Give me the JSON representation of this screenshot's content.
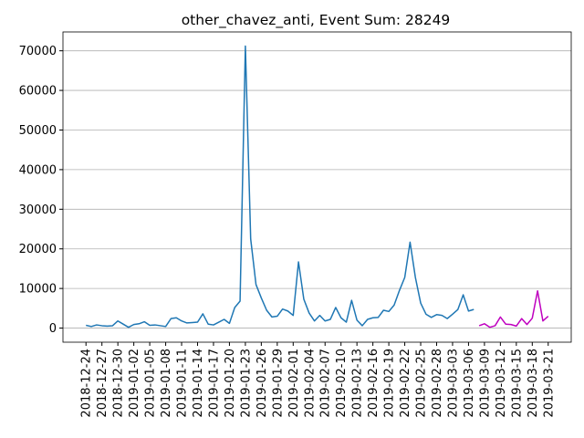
{
  "chart_data": {
    "type": "line",
    "title": "other_chavez_anti, Event Sum: 28249",
    "x": [
      "2018-12-24",
      "2018-12-25",
      "2018-12-26",
      "2018-12-27",
      "2018-12-28",
      "2018-12-29",
      "2018-12-30",
      "2018-12-31",
      "2019-01-01",
      "2019-01-02",
      "2019-01-03",
      "2019-01-04",
      "2019-01-05",
      "2019-01-06",
      "2019-01-07",
      "2019-01-08",
      "2019-01-09",
      "2019-01-10",
      "2019-01-11",
      "2019-01-12",
      "2019-01-13",
      "2019-01-14",
      "2019-01-15",
      "2019-01-16",
      "2019-01-17",
      "2019-01-18",
      "2019-01-19",
      "2019-01-20",
      "2019-01-21",
      "2019-01-22",
      "2019-01-23",
      "2019-01-24",
      "2019-01-25",
      "2019-01-26",
      "2019-01-27",
      "2019-01-28",
      "2019-01-29",
      "2019-01-30",
      "2019-01-31",
      "2019-02-01",
      "2019-02-02",
      "2019-02-03",
      "2019-02-04",
      "2019-02-05",
      "2019-02-06",
      "2019-02-07",
      "2019-02-08",
      "2019-02-09",
      "2019-02-10",
      "2019-02-11",
      "2019-02-12",
      "2019-02-13",
      "2019-02-14",
      "2019-02-15",
      "2019-02-16",
      "2019-02-17",
      "2019-02-18",
      "2019-02-19",
      "2019-02-20",
      "2019-02-21",
      "2019-02-22",
      "2019-02-23",
      "2019-02-24",
      "2019-02-25",
      "2019-02-26",
      "2019-02-27",
      "2019-02-28",
      "2019-03-01",
      "2019-03-02",
      "2019-03-03",
      "2019-03-04",
      "2019-03-05",
      "2019-03-06",
      "2019-03-07",
      "2019-03-08",
      "2019-03-09",
      "2019-03-10",
      "2019-03-11",
      "2019-03-12",
      "2019-03-13",
      "2019-03-14",
      "2019-03-15",
      "2019-03-16",
      "2019-03-17",
      "2019-03-18",
      "2019-03-19",
      "2019-03-20",
      "2019-03-21"
    ],
    "series": [
      {
        "color": "#1f77b4",
        "values": [
          700,
          400,
          800,
          600,
          500,
          600,
          1800,
          1000,
          200,
          900,
          1100,
          1600,
          700,
          800,
          600,
          400,
          2400,
          2600,
          1800,
          1300,
          1400,
          1500,
          3600,
          1000,
          800,
          1500,
          2200,
          1200,
          5200,
          6800,
          71200,
          22500,
          11000,
          7600,
          4500,
          2800,
          3000,
          4800,
          4300,
          3200,
          16700,
          7300,
          3800,
          1800,
          3200,
          1800,
          2200,
          5200,
          2600,
          1500,
          7000,
          2000,
          600,
          2200,
          2600,
          2700,
          4500,
          4200,
          5800,
          9500,
          12800,
          21700,
          12800,
          6300,
          3500,
          2700,
          3400,
          3200,
          2400,
          3500,
          4700,
          8400,
          4300,
          4700,
          null,
          null,
          null,
          null,
          null,
          null,
          null,
          null,
          null,
          null,
          null,
          null,
          null,
          null
        ]
      },
      {
        "color": "#bf00bf",
        "values": [
          null,
          null,
          null,
          null,
          null,
          null,
          null,
          null,
          null,
          null,
          null,
          null,
          null,
          null,
          null,
          null,
          null,
          null,
          null,
          null,
          null,
          null,
          null,
          null,
          null,
          null,
          null,
          null,
          null,
          null,
          null,
          null,
          null,
          null,
          null,
          null,
          null,
          null,
          null,
          null,
          null,
          null,
          null,
          null,
          null,
          null,
          null,
          null,
          null,
          null,
          null,
          null,
          null,
          null,
          null,
          null,
          null,
          null,
          null,
          null,
          null,
          null,
          null,
          null,
          null,
          null,
          null,
          null,
          null,
          null,
          null,
          null,
          null,
          null,
          600,
          1100,
          200,
          600,
          2800,
          1000,
          900,
          500,
          2400,
          900,
          2500,
          9400,
          1800,
          3000
        ]
      }
    ],
    "xlim": [
      "2018-12-19T16:00",
      "2019-03-25T08:00"
    ],
    "xticks": [
      "2018-12-24",
      "2018-12-27",
      "2018-12-30",
      "2019-01-02",
      "2019-01-05",
      "2019-01-08",
      "2019-01-11",
      "2019-01-14",
      "2019-01-17",
      "2019-01-20",
      "2019-01-23",
      "2019-01-26",
      "2019-01-29",
      "2019-02-01",
      "2019-02-04",
      "2019-02-07",
      "2019-02-10",
      "2019-02-13",
      "2019-02-16",
      "2019-02-19",
      "2019-02-22",
      "2019-02-25",
      "2019-02-28",
      "2019-03-03",
      "2019-03-06",
      "2019-03-09",
      "2019-03-12",
      "2019-03-15",
      "2019-03-18",
      "2019-03-21"
    ],
    "ylim": [
      -3560,
      74760
    ],
    "yticks": [
      0,
      10000,
      20000,
      30000,
      40000,
      50000,
      60000,
      70000
    ],
    "grid": true
  }
}
